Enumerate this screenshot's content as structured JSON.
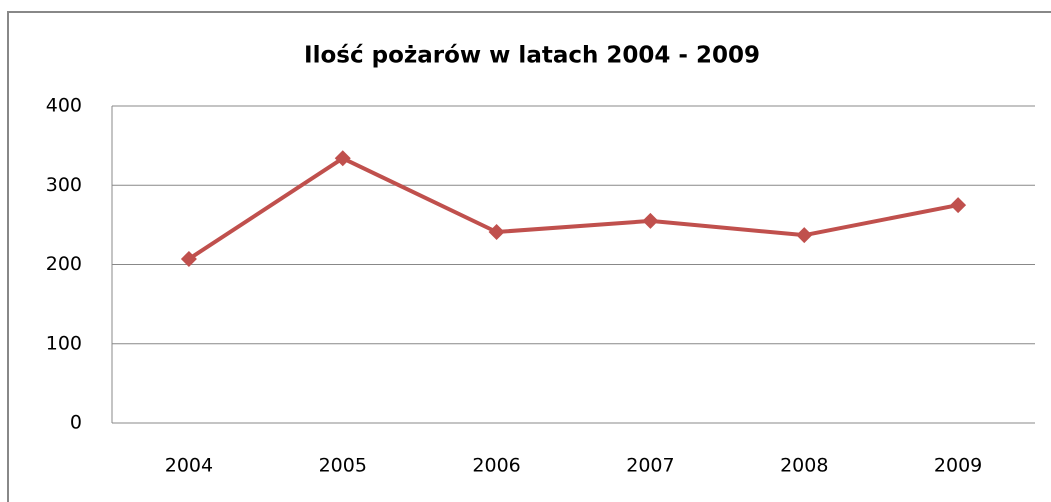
{
  "chart_data": {
    "type": "line",
    "title": "Ilość pożarów w latach 2004 - 2009",
    "categories": [
      "2004",
      "2005",
      "2006",
      "2007",
      "2008",
      "2009"
    ],
    "values": [
      207,
      334,
      241,
      255,
      237,
      275
    ],
    "color": "#c0504d",
    "ylim": [
      0,
      400
    ],
    "yticks": [
      0,
      100,
      200,
      300,
      400
    ],
    "grid": true
  }
}
